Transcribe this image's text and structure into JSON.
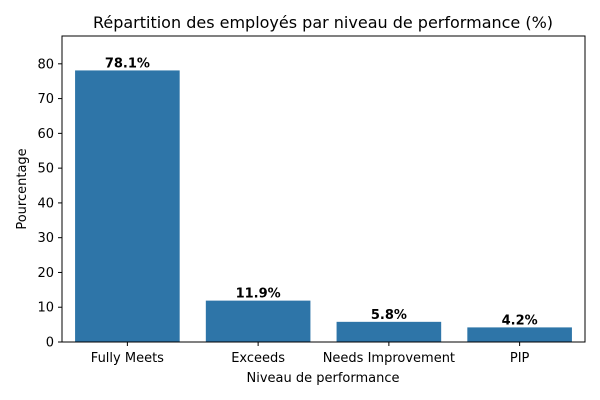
{
  "chart_data": {
    "type": "bar",
    "title": "Répartition des employés par niveau de performance (%)",
    "xlabel": "Niveau de performance",
    "ylabel": "Pourcentage",
    "categories": [
      "Fully Meets",
      "Exceeds",
      "Needs Improvement",
      "PIP"
    ],
    "values": [
      78.1,
      11.9,
      5.8,
      4.2
    ],
    "data_labels": [
      "78.1%",
      "11.9%",
      "5.8%",
      "4.2%"
    ],
    "ylim": [
      0,
      88
    ],
    "yticks": [
      0,
      10,
      20,
      30,
      40,
      50,
      60,
      70,
      80
    ],
    "grid": false,
    "bar_color": "#2e75a8"
  }
}
